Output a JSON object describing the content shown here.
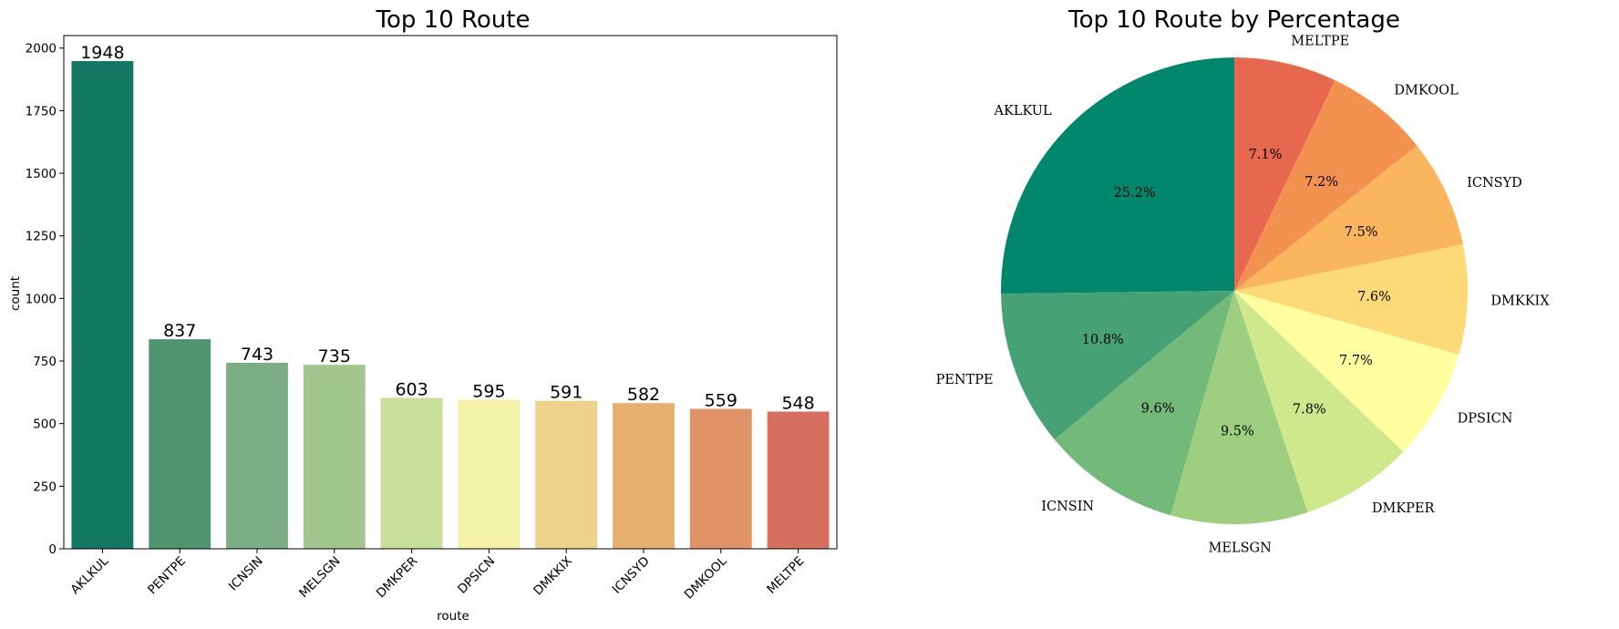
{
  "chart_data": [
    {
      "type": "bar",
      "title": "Top 10 Route",
      "xlabel": "route",
      "ylabel": "count",
      "ylim": [
        0,
        2050
      ],
      "yticks": [
        0,
        250,
        500,
        750,
        1000,
        1250,
        1500,
        1750,
        2000
      ],
      "grid": false,
      "categories": [
        "AKLKUL",
        "PENTPE",
        "ICNSIN",
        "MELSGN",
        "DMKPER",
        "DPSICN",
        "DMKKIX",
        "ICNSYD",
        "DMKOOL",
        "MELTPE"
      ],
      "values": [
        1948,
        837,
        743,
        735,
        603,
        595,
        591,
        582,
        559,
        548
      ],
      "colors": [
        "#137862",
        "#4d9670",
        "#7bae84",
        "#a2c78e",
        "#c8df9a",
        "#f3f3a8",
        "#ecd28b",
        "#e7b06f",
        "#df9366",
        "#d66f5e"
      ]
    },
    {
      "type": "pie",
      "title": "Top 10 Route by Percentage",
      "start_angle": 90,
      "direction": "counterclockwise",
      "labels": [
        "AKLKUL",
        "PENTPE",
        "ICNSIN",
        "MELSGN",
        "DMKPER",
        "DPSICN",
        "DMKKIX",
        "ICNSYD",
        "DMKOOL",
        "MELTPE"
      ],
      "values": [
        25.2,
        10.8,
        9.6,
        9.5,
        7.8,
        7.7,
        7.6,
        7.5,
        7.2,
        7.1
      ],
      "pct_labels": [
        "25.2%",
        "10.8%",
        "9.6%",
        "9.5%",
        "7.8%",
        "7.7%",
        "7.6%",
        "7.5%",
        "7.2%",
        "7.1%"
      ],
      "colors": [
        "#00876c",
        "#46a275",
        "#72b97a",
        "#9ecf80",
        "#d0e88c",
        "#ffff9f",
        "#fed978",
        "#f9b65f",
        "#f39150",
        "#e7684f"
      ]
    }
  ]
}
